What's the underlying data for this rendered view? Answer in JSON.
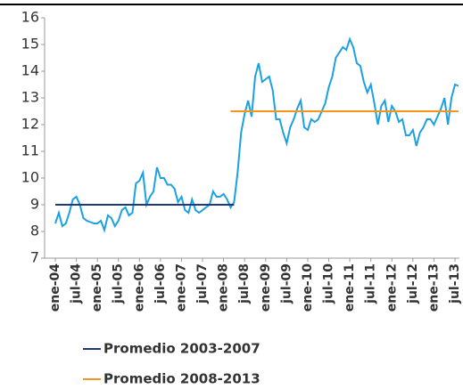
{
  "chart_data": {
    "type": "line",
    "categories": [
      "ene-04",
      null,
      null,
      null,
      null,
      null,
      "jul-04",
      null,
      null,
      null,
      null,
      null,
      "ene-05",
      null,
      null,
      null,
      null,
      null,
      "jul-05",
      null,
      null,
      null,
      null,
      null,
      "ene-06",
      null,
      null,
      null,
      null,
      null,
      "jul-06",
      null,
      null,
      null,
      null,
      null,
      "ene-07",
      null,
      null,
      null,
      null,
      null,
      "jul-07",
      null,
      null,
      null,
      null,
      null,
      "ene-08",
      null,
      null,
      null,
      null,
      null,
      "jul-08",
      null,
      null,
      null,
      null,
      null,
      "ene-09",
      null,
      null,
      null,
      null,
      null,
      "jul-09",
      null,
      null,
      null,
      null,
      null,
      "ene-10",
      null,
      null,
      null,
      null,
      null,
      "jul-10",
      null,
      null,
      null,
      null,
      null,
      "ene-11",
      null,
      null,
      null,
      null,
      null,
      "jul-11",
      null,
      null,
      null,
      null,
      null,
      "ene-12",
      null,
      null,
      null,
      null,
      null,
      "jul-12",
      null,
      null,
      null,
      null,
      null,
      "ene-13",
      null,
      null,
      null,
      null,
      null,
      "jul-13",
      null
    ],
    "series": [
      {
        "color": "#1ba1e2",
        "values": [
          8.3,
          8.7,
          8.2,
          8.3,
          8.7,
          9.2,
          9.3,
          9.0,
          8.5,
          8.4,
          8.35,
          8.3,
          8.3,
          8.4,
          8.05,
          8.6,
          8.5,
          8.2,
          8.4,
          8.8,
          8.9,
          8.6,
          8.7,
          9.8,
          9.9,
          10.2,
          9.0,
          9.3,
          9.5,
          10.4,
          10.0,
          10.0,
          9.75,
          9.75,
          9.6,
          9.1,
          9.3,
          8.8,
          8.7,
          9.2,
          8.8,
          8.7,
          8.8,
          8.9,
          9.0,
          9.5,
          9.3,
          9.3,
          9.4,
          9.2,
          8.9,
          9.1,
          10.2,
          11.7,
          12.4,
          12.9,
          12.3,
          13.8,
          14.3,
          13.6,
          13.7,
          13.8,
          13.3,
          12.2,
          12.2,
          11.7,
          11.3,
          11.9,
          12.2,
          12.6,
          12.9,
          11.9,
          11.8,
          12.2,
          12.1,
          12.2,
          12.5,
          12.8,
          13.4,
          13.8,
          14.5,
          14.7,
          14.9,
          14.8,
          15.2,
          14.9,
          14.3,
          14.2,
          13.6,
          13.2,
          13.5,
          12.8,
          12.0,
          12.7,
          12.9,
          12.1,
          12.7,
          12.5,
          12.1,
          12.2,
          11.6,
          11.6,
          11.8,
          11.2,
          11.7,
          11.9,
          12.2,
          12.2,
          12.0,
          12.3,
          12.6,
          13.0,
          12.0,
          13.0,
          13.5,
          13.45
        ]
      },
      {
        "name": "Promedio 2003-2007",
        "color": "#1f3a7a",
        "values": [
          9,
          9,
          9,
          9,
          9,
          9,
          9,
          9,
          9,
          9,
          9,
          9,
          9,
          9,
          9,
          9,
          9,
          9,
          9,
          9,
          9,
          9,
          9,
          9,
          9,
          9,
          9,
          9,
          9,
          9,
          9,
          9,
          9,
          9,
          9,
          9,
          9,
          9,
          9,
          9,
          9,
          9,
          9,
          9,
          9,
          9,
          9,
          9,
          9,
          9,
          9,
          9,
          null,
          null,
          null,
          null,
          null,
          null,
          null,
          null,
          null,
          null,
          null,
          null,
          null,
          null,
          null,
          null,
          null,
          null,
          null,
          null,
          null,
          null,
          null,
          null,
          null,
          null,
          null,
          null,
          null,
          null,
          null,
          null,
          null,
          null,
          null,
          null,
          null,
          null,
          null,
          null,
          null,
          null,
          null,
          null,
          null,
          null,
          null,
          null,
          null,
          null,
          null,
          null,
          null,
          null,
          null,
          null,
          null,
          null,
          null,
          null,
          null,
          null,
          null,
          null
        ]
      },
      {
        "name": "Promedio 2008-2013",
        "color": "#f7941d",
        "values": [
          null,
          null,
          null,
          null,
          null,
          null,
          null,
          null,
          null,
          null,
          null,
          null,
          null,
          null,
          null,
          null,
          null,
          null,
          null,
          null,
          null,
          null,
          null,
          null,
          null,
          null,
          null,
          null,
          null,
          null,
          null,
          null,
          null,
          null,
          null,
          null,
          null,
          null,
          null,
          null,
          null,
          null,
          null,
          null,
          null,
          null,
          null,
          null,
          null,
          null,
          12.5,
          12.5,
          12.5,
          12.5,
          12.5,
          12.5,
          12.5,
          12.5,
          12.5,
          12.5,
          12.5,
          12.5,
          12.5,
          12.5,
          12.5,
          12.5,
          12.5,
          12.5,
          12.5,
          12.5,
          12.5,
          12.5,
          12.5,
          12.5,
          12.5,
          12.5,
          12.5,
          12.5,
          12.5,
          12.5,
          12.5,
          12.5,
          12.5,
          12.5,
          12.5,
          12.5,
          12.5,
          12.5,
          12.5,
          12.5,
          12.5,
          12.5,
          12.5,
          12.5,
          12.5,
          12.5,
          12.5,
          12.5,
          12.5,
          12.5,
          12.5,
          12.5,
          12.5,
          12.5,
          12.5,
          12.5,
          12.5,
          12.5,
          12.5,
          12.5,
          12.5,
          12.5,
          12.5,
          12.5,
          12.5,
          12.5
        ]
      }
    ],
    "ylim": [
      7,
      16
    ],
    "yticks": [
      7,
      8,
      9,
      10,
      11,
      12,
      13,
      14,
      15,
      16
    ],
    "grid": false
  }
}
